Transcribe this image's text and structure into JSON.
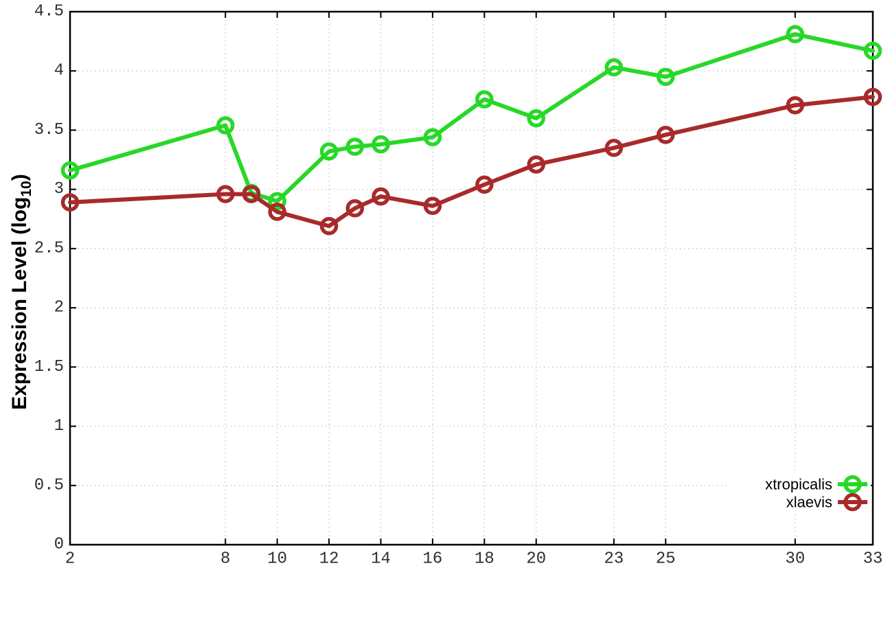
{
  "chart_data": {
    "type": "line",
    "title": "",
    "xlabel": "Embryonic Stage",
    "ylabel": "Expression Level (log10)",
    "ylabel_parts": {
      "prefix": "Expression Level (log",
      "sub": "10",
      "suffix": ")"
    },
    "x": [
      2,
      8,
      9,
      10,
      12,
      13,
      14,
      16,
      18,
      20,
      23,
      25,
      30,
      33
    ],
    "series": [
      {
        "name": "xtropicalis",
        "color": "#28d828",
        "values": [
          3.16,
          3.54,
          2.97,
          2.9,
          3.32,
          3.36,
          3.38,
          3.44,
          3.76,
          3.6,
          4.03,
          3.95,
          4.31,
          4.17
        ]
      },
      {
        "name": "xlaevis",
        "color": "#a82a2a",
        "values": [
          2.89,
          2.96,
          2.96,
          2.81,
          2.69,
          2.84,
          2.94,
          2.86,
          3.04,
          3.21,
          3.35,
          3.46,
          3.71,
          3.78
        ]
      }
    ],
    "xlim": [
      2,
      33
    ],
    "ylim": [
      0,
      4.5
    ],
    "xticks": {
      "values": [
        2,
        8,
        10,
        12,
        14,
        16,
        18,
        20,
        23,
        25,
        30,
        33
      ],
      "labels": [
        "2",
        "8",
        "10",
        "12",
        "14",
        "16",
        "18",
        "20",
        "23",
        "25",
        "30",
        "33"
      ]
    },
    "yticks": {
      "values": [
        0,
        0.5,
        1,
        1.5,
        2,
        2.5,
        3,
        3.5,
        4,
        4.5
      ],
      "labels": [
        "0",
        "0.5",
        "1",
        "1.5",
        "2",
        "2.5",
        "3",
        "3.5",
        "4",
        "4.5"
      ]
    },
    "grid": true,
    "marker": "open-circle",
    "legend": {
      "position": "inside-bottom-right",
      "entries": [
        {
          "label": "xtropicalis",
          "color": "#28d828"
        },
        {
          "label": "xlaevis",
          "color": "#a82a2a"
        }
      ]
    },
    "styles": {
      "background": "#ffffff",
      "axis_color": "#000000",
      "grid_color": "#bdbdbd",
      "tick_label_color": "#2e2e2e",
      "line_width": 6,
      "marker_radius": 10.5,
      "marker_stroke": 5.5
    }
  }
}
